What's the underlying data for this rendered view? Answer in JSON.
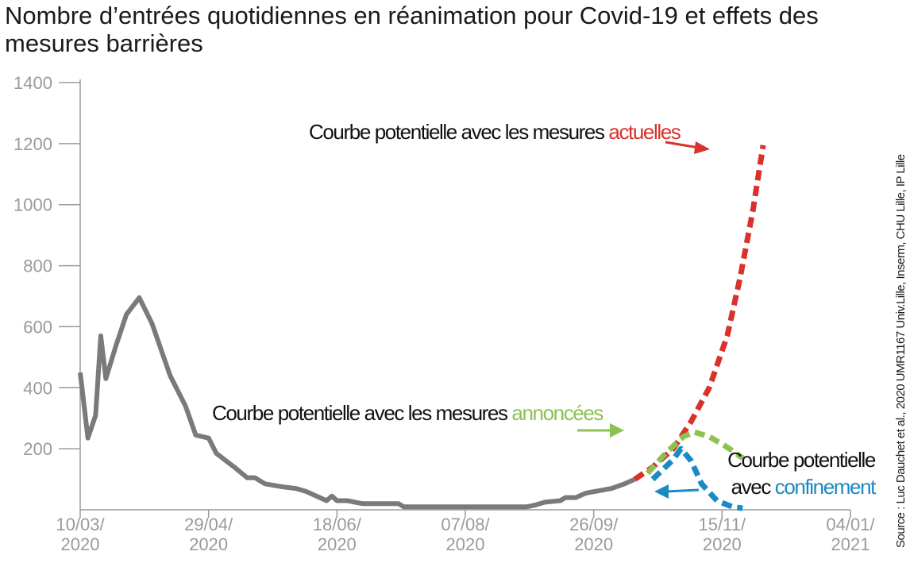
{
  "chart_data": {
    "type": "line",
    "title": "Nombre d’entrées quotidiennes en réanimation pour Covid-19 et effets des mesures barrières",
    "source": "Source : Luc Dauchet et al., 2020 UMR1167 Univ.Lille, Inserm, CHU Lille, IP Lille",
    "ylim": [
      0,
      1400
    ],
    "yticks": [
      "200",
      "400",
      "600",
      "800",
      "1000",
      "1200",
      "1400"
    ],
    "xticks": [
      {
        "line1": "10/03/",
        "line2": "2020",
        "date": "2020-03-10"
      },
      {
        "line1": "29/04/",
        "line2": "2020",
        "date": "2020-04-29"
      },
      {
        "line1": "18/06/",
        "line2": "2020",
        "date": "2020-06-18"
      },
      {
        "line1": "07/08/",
        "line2": "2020",
        "date": "2020-08-07"
      },
      {
        "line1": "26/09/",
        "line2": "2020",
        "date": "2020-09-26"
      },
      {
        "line1": "15/11/",
        "line2": "2020",
        "date": "2020-11-15"
      },
      {
        "line1": "04/01/",
        "line2": "2021",
        "date": "2021-01-04"
      }
    ],
    "series": [
      {
        "key": "observed",
        "color": "#7a7a7a",
        "points": [
          [
            "2020-03-10",
            450
          ],
          [
            "2020-03-13",
            235
          ],
          [
            "2020-03-16",
            310
          ],
          [
            "2020-03-18",
            570
          ],
          [
            "2020-03-20",
            430
          ],
          [
            "2020-03-24",
            540
          ],
          [
            "2020-03-28",
            640
          ],
          [
            "2020-04-02",
            695
          ],
          [
            "2020-04-07",
            610
          ],
          [
            "2020-04-14",
            440
          ],
          [
            "2020-04-20",
            340
          ],
          [
            "2020-04-24",
            245
          ],
          [
            "2020-04-29",
            235
          ],
          [
            "2020-05-02",
            185
          ],
          [
            "2020-05-09",
            140
          ],
          [
            "2020-05-14",
            105
          ],
          [
            "2020-05-17",
            105
          ],
          [
            "2020-05-21",
            85
          ],
          [
            "2020-05-28",
            75
          ],
          [
            "2020-06-02",
            70
          ],
          [
            "2020-06-06",
            60
          ],
          [
            "2020-06-10",
            45
          ],
          [
            "2020-06-14",
            30
          ],
          [
            "2020-06-16",
            45
          ],
          [
            "2020-06-18",
            30
          ],
          [
            "2020-06-22",
            30
          ],
          [
            "2020-06-28",
            20
          ],
          [
            "2020-07-12",
            20
          ],
          [
            "2020-07-14",
            10
          ],
          [
            "2020-08-07",
            10
          ],
          [
            "2020-08-31",
            10
          ],
          [
            "2020-09-03",
            15
          ],
          [
            "2020-09-07",
            25
          ],
          [
            "2020-09-13",
            30
          ],
          [
            "2020-09-15",
            40
          ],
          [
            "2020-09-19",
            40
          ],
          [
            "2020-09-23",
            55
          ],
          [
            "2020-10-03",
            70
          ],
          [
            "2020-10-08",
            85
          ],
          [
            "2020-10-12",
            100
          ]
        ]
      },
      {
        "key": "current-measures",
        "color": "#d9312b",
        "points": [
          [
            "2020-10-12",
            100
          ],
          [
            "2020-10-19",
            140
          ],
          [
            "2020-10-27",
            200
          ],
          [
            "2020-11-03",
            290
          ],
          [
            "2020-11-10",
            400
          ],
          [
            "2020-11-17",
            570
          ],
          [
            "2020-11-22",
            760
          ],
          [
            "2020-11-27",
            980
          ],
          [
            "2020-12-01",
            1195
          ]
        ]
      },
      {
        "key": "announced-measures",
        "color": "#8cc251",
        "points": [
          [
            "2020-10-17",
            120
          ],
          [
            "2020-10-24",
            185
          ],
          [
            "2020-10-31",
            240
          ],
          [
            "2020-11-04",
            255
          ],
          [
            "2020-11-10",
            240
          ],
          [
            "2020-11-17",
            205
          ],
          [
            "2020-11-23",
            170
          ]
        ]
      },
      {
        "key": "lockdown",
        "color": "#1a8ac2",
        "points": [
          [
            "2020-10-19",
            100
          ],
          [
            "2020-10-27",
            165
          ],
          [
            "2020-10-30",
            200
          ],
          [
            "2020-11-03",
            160
          ],
          [
            "2020-11-07",
            85
          ],
          [
            "2020-11-13",
            30
          ],
          [
            "2020-11-19",
            10
          ],
          [
            "2020-11-23",
            5
          ]
        ]
      }
    ],
    "annotations": [
      {
        "key": "ann-actuelles",
        "prefix": "Courbe potentielle avec les mesures ",
        "highlight": "actuelles",
        "color": "#d9312b"
      },
      {
        "key": "ann-annoncees",
        "prefix": "Courbe potentielle avec les mesures ",
        "highlight": "annoncées",
        "color": "#8cc251"
      },
      {
        "key": "ann-confinement",
        "line1": "Courbe potentielle",
        "prefix": "avec ",
        "highlight": "confinement",
        "color": "#1a8ac2"
      }
    ]
  }
}
